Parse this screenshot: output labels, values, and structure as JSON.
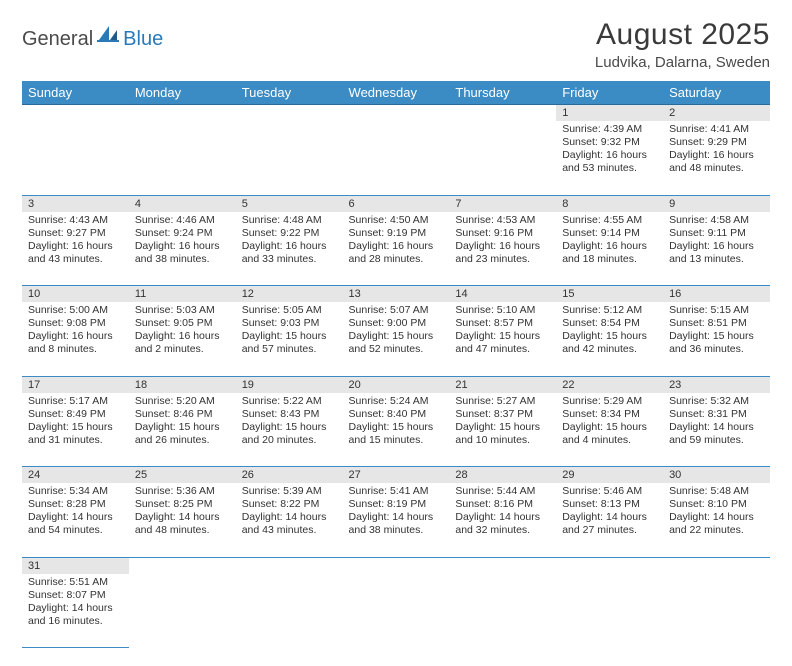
{
  "logo": {
    "general": "General",
    "blue": "Blue"
  },
  "title": "August 2025",
  "location": "Ludvika, Dalarna, Sweden",
  "colors": {
    "header_bg": "#3b8bc4",
    "header_text": "#ffffff",
    "daynum_bg": "#e6e6e6",
    "border": "#3b8bc4",
    "text": "#333333",
    "logo_gray": "#4a4a4a",
    "logo_blue": "#2a7ab8"
  },
  "weekdays": [
    "Sunday",
    "Monday",
    "Tuesday",
    "Wednesday",
    "Thursday",
    "Friday",
    "Saturday"
  ],
  "weeks": [
    [
      null,
      null,
      null,
      null,
      null,
      {
        "n": "1",
        "sr": "Sunrise: 4:39 AM",
        "ss": "Sunset: 9:32 PM",
        "dl": "Daylight: 16 hours and 53 minutes."
      },
      {
        "n": "2",
        "sr": "Sunrise: 4:41 AM",
        "ss": "Sunset: 9:29 PM",
        "dl": "Daylight: 16 hours and 48 minutes."
      }
    ],
    [
      {
        "n": "3",
        "sr": "Sunrise: 4:43 AM",
        "ss": "Sunset: 9:27 PM",
        "dl": "Daylight: 16 hours and 43 minutes."
      },
      {
        "n": "4",
        "sr": "Sunrise: 4:46 AM",
        "ss": "Sunset: 9:24 PM",
        "dl": "Daylight: 16 hours and 38 minutes."
      },
      {
        "n": "5",
        "sr": "Sunrise: 4:48 AM",
        "ss": "Sunset: 9:22 PM",
        "dl": "Daylight: 16 hours and 33 minutes."
      },
      {
        "n": "6",
        "sr": "Sunrise: 4:50 AM",
        "ss": "Sunset: 9:19 PM",
        "dl": "Daylight: 16 hours and 28 minutes."
      },
      {
        "n": "7",
        "sr": "Sunrise: 4:53 AM",
        "ss": "Sunset: 9:16 PM",
        "dl": "Daylight: 16 hours and 23 minutes."
      },
      {
        "n": "8",
        "sr": "Sunrise: 4:55 AM",
        "ss": "Sunset: 9:14 PM",
        "dl": "Daylight: 16 hours and 18 minutes."
      },
      {
        "n": "9",
        "sr": "Sunrise: 4:58 AM",
        "ss": "Sunset: 9:11 PM",
        "dl": "Daylight: 16 hours and 13 minutes."
      }
    ],
    [
      {
        "n": "10",
        "sr": "Sunrise: 5:00 AM",
        "ss": "Sunset: 9:08 PM",
        "dl": "Daylight: 16 hours and 8 minutes."
      },
      {
        "n": "11",
        "sr": "Sunrise: 5:03 AM",
        "ss": "Sunset: 9:05 PM",
        "dl": "Daylight: 16 hours and 2 minutes."
      },
      {
        "n": "12",
        "sr": "Sunrise: 5:05 AM",
        "ss": "Sunset: 9:03 PM",
        "dl": "Daylight: 15 hours and 57 minutes."
      },
      {
        "n": "13",
        "sr": "Sunrise: 5:07 AM",
        "ss": "Sunset: 9:00 PM",
        "dl": "Daylight: 15 hours and 52 minutes."
      },
      {
        "n": "14",
        "sr": "Sunrise: 5:10 AM",
        "ss": "Sunset: 8:57 PM",
        "dl": "Daylight: 15 hours and 47 minutes."
      },
      {
        "n": "15",
        "sr": "Sunrise: 5:12 AM",
        "ss": "Sunset: 8:54 PM",
        "dl": "Daylight: 15 hours and 42 minutes."
      },
      {
        "n": "16",
        "sr": "Sunrise: 5:15 AM",
        "ss": "Sunset: 8:51 PM",
        "dl": "Daylight: 15 hours and 36 minutes."
      }
    ],
    [
      {
        "n": "17",
        "sr": "Sunrise: 5:17 AM",
        "ss": "Sunset: 8:49 PM",
        "dl": "Daylight: 15 hours and 31 minutes."
      },
      {
        "n": "18",
        "sr": "Sunrise: 5:20 AM",
        "ss": "Sunset: 8:46 PM",
        "dl": "Daylight: 15 hours and 26 minutes."
      },
      {
        "n": "19",
        "sr": "Sunrise: 5:22 AM",
        "ss": "Sunset: 8:43 PM",
        "dl": "Daylight: 15 hours and 20 minutes."
      },
      {
        "n": "20",
        "sr": "Sunrise: 5:24 AM",
        "ss": "Sunset: 8:40 PM",
        "dl": "Daylight: 15 hours and 15 minutes."
      },
      {
        "n": "21",
        "sr": "Sunrise: 5:27 AM",
        "ss": "Sunset: 8:37 PM",
        "dl": "Daylight: 15 hours and 10 minutes."
      },
      {
        "n": "22",
        "sr": "Sunrise: 5:29 AM",
        "ss": "Sunset: 8:34 PM",
        "dl": "Daylight: 15 hours and 4 minutes."
      },
      {
        "n": "23",
        "sr": "Sunrise: 5:32 AM",
        "ss": "Sunset: 8:31 PM",
        "dl": "Daylight: 14 hours and 59 minutes."
      }
    ],
    [
      {
        "n": "24",
        "sr": "Sunrise: 5:34 AM",
        "ss": "Sunset: 8:28 PM",
        "dl": "Daylight: 14 hours and 54 minutes."
      },
      {
        "n": "25",
        "sr": "Sunrise: 5:36 AM",
        "ss": "Sunset: 8:25 PM",
        "dl": "Daylight: 14 hours and 48 minutes."
      },
      {
        "n": "26",
        "sr": "Sunrise: 5:39 AM",
        "ss": "Sunset: 8:22 PM",
        "dl": "Daylight: 14 hours and 43 minutes."
      },
      {
        "n": "27",
        "sr": "Sunrise: 5:41 AM",
        "ss": "Sunset: 8:19 PM",
        "dl": "Daylight: 14 hours and 38 minutes."
      },
      {
        "n": "28",
        "sr": "Sunrise: 5:44 AM",
        "ss": "Sunset: 8:16 PM",
        "dl": "Daylight: 14 hours and 32 minutes."
      },
      {
        "n": "29",
        "sr": "Sunrise: 5:46 AM",
        "ss": "Sunset: 8:13 PM",
        "dl": "Daylight: 14 hours and 27 minutes."
      },
      {
        "n": "30",
        "sr": "Sunrise: 5:48 AM",
        "ss": "Sunset: 8:10 PM",
        "dl": "Daylight: 14 hours and 22 minutes."
      }
    ],
    [
      {
        "n": "31",
        "sr": "Sunrise: 5:51 AM",
        "ss": "Sunset: 8:07 PM",
        "dl": "Daylight: 14 hours and 16 minutes."
      },
      null,
      null,
      null,
      null,
      null,
      null
    ]
  ]
}
